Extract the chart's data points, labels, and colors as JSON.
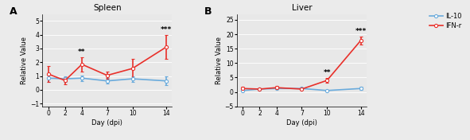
{
  "spleen": {
    "days": [
      0,
      2,
      4,
      7,
      10,
      14
    ],
    "il10_mean": [
      0.85,
      0.8,
      0.85,
      0.65,
      0.8,
      0.65
    ],
    "il10_err": [
      0.25,
      0.2,
      0.2,
      0.2,
      0.2,
      0.3
    ],
    "ifng_mean": [
      1.15,
      0.68,
      1.85,
      1.05,
      1.55,
      3.1
    ],
    "ifng_err": [
      0.55,
      0.25,
      0.5,
      0.25,
      0.7,
      0.85
    ],
    "title": "Spleen",
    "ylabel": "Relative Value",
    "xlabel": "Day (dpi)",
    "ylim": [
      -1.2,
      5.5
    ],
    "yticks": [
      -1,
      0,
      1,
      2,
      3,
      4,
      5
    ],
    "sig_day4": "**",
    "sig_day14": "***",
    "panel_label": "A"
  },
  "liver": {
    "days": [
      0,
      2,
      4,
      7,
      10,
      14
    ],
    "il10_mean": [
      0.5,
      1.0,
      1.2,
      1.2,
      0.5,
      1.2
    ],
    "il10_err": [
      0.3,
      0.3,
      0.3,
      0.3,
      0.3,
      0.5
    ],
    "ifng_mean": [
      1.2,
      1.0,
      1.5,
      1.0,
      4.0,
      17.8
    ],
    "ifng_err": [
      0.5,
      0.3,
      0.5,
      0.3,
      0.8,
      1.5
    ],
    "title": "Liver",
    "ylabel": "Relative Value",
    "xlabel": "Day (dpi)",
    "ylim": [
      -5,
      27
    ],
    "yticks": [
      -5,
      0,
      5,
      10,
      15,
      20,
      25
    ],
    "sig_day10": "**",
    "sig_day14": "***",
    "panel_label": "B"
  },
  "il10_color": "#6aabdc",
  "ifng_color": "#e8302a",
  "marker": "o",
  "markersize": 3,
  "linewidth": 1.2,
  "legend_il10": "IL-10",
  "legend_ifng": "IFN-r",
  "background_color": "#ebebeb",
  "axes_color": "#e8e8e8",
  "grid_color": "#ffffff",
  "sig_fontsize": 6.5,
  "label_fontsize": 6,
  "title_fontsize": 7.5,
  "tick_fontsize": 5.5,
  "panel_fontsize": 9,
  "legend_fontsize": 6
}
